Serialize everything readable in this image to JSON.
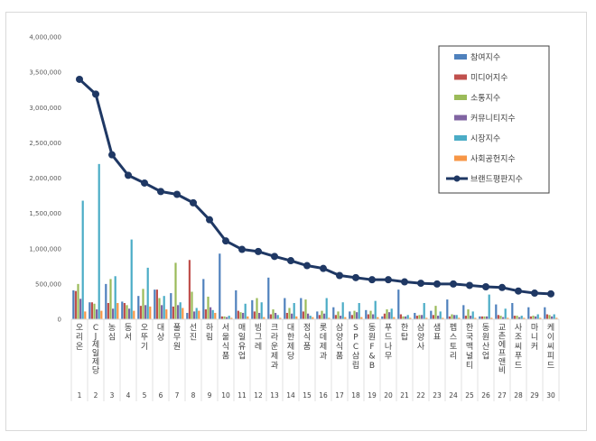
{
  "chart_data": {
    "type": "bar+line",
    "title": "",
    "xlabel": "",
    "ylabel": "",
    "ylim": [
      0,
      4000000
    ],
    "ytick_labels": [
      "0",
      "500,000",
      "1,000,000",
      "1,500,000",
      "2,000,000",
      "2,500,000",
      "3,000,000",
      "3,500,000",
      "4,000,000"
    ],
    "grid": false,
    "legend_position": "top-right",
    "categories": [
      "오리온",
      "CJ제일제당",
      "농심",
      "동서",
      "오뚜기",
      "대상",
      "풀무원",
      "선진",
      "하림",
      "서울식품",
      "매일유업",
      "빙그레",
      "크라운제과",
      "대한제당",
      "정식품",
      "롯데제과",
      "삼양식품",
      "SPC삼립",
      "동원F&B",
      "푸드나무",
      "한탑",
      "삼양사",
      "샘표",
      "펩스토리",
      "한국맥널티",
      "동원산업",
      "교촌에프앤비",
      "사조씨푸드",
      "마니커",
      "케이씨피드"
    ],
    "ranks": [
      "1",
      "2",
      "3",
      "4",
      "5",
      "6",
      "7",
      "8",
      "9",
      "10",
      "11",
      "12",
      "13",
      "14",
      "15",
      "16",
      "17",
      "18",
      "19",
      "20",
      "21",
      "22",
      "23",
      "24",
      "25",
      "26",
      "27",
      "28",
      "29",
      "30"
    ],
    "series": [
      {
        "name": "참여지수",
        "color": "#4f81bd",
        "kind": "bar",
        "values": [
          410000,
          240000,
          500000,
          250000,
          330000,
          420000,
          370000,
          90000,
          570000,
          930000,
          410000,
          270000,
          590000,
          300000,
          300000,
          110000,
          170000,
          110000,
          130000,
          40000,
          420000,
          90000,
          120000,
          280000,
          200000,
          40000,
          210000,
          230000,
          170000,
          170000
        ]
      },
      {
        "name": "미디어지수",
        "color": "#c0504d",
        "kind": "bar",
        "values": [
          400000,
          240000,
          230000,
          230000,
          190000,
          420000,
          180000,
          840000,
          140000,
          40000,
          120000,
          110000,
          70000,
          90000,
          110000,
          60000,
          60000,
          60000,
          70000,
          80000,
          70000,
          50000,
          60000,
          40000,
          50000,
          40000,
          60000,
          50000,
          40000,
          70000
        ]
      },
      {
        "name": "소통지수",
        "color": "#9bbb59",
        "kind": "bar",
        "values": [
          500000,
          220000,
          570000,
          200000,
          430000,
          300000,
          800000,
          390000,
          320000,
          40000,
          100000,
          300000,
          140000,
          160000,
          280000,
          120000,
          110000,
          120000,
          120000,
          140000,
          40000,
          60000,
          190000,
          70000,
          140000,
          40000,
          50000,
          50000,
          50000,
          60000
        ]
      },
      {
        "name": "커뮤니티지수",
        "color": "#8064a2",
        "kind": "bar",
        "values": [
          290000,
          140000,
          150000,
          150000,
          200000,
          200000,
          200000,
          110000,
          170000,
          30000,
          90000,
          90000,
          90000,
          80000,
          80000,
          80000,
          50000,
          100000,
          70000,
          100000,
          40000,
          60000,
          50000,
          60000,
          50000,
          40000,
          30000,
          30000,
          40000,
          40000
        ]
      },
      {
        "name": "시장지수",
        "color": "#4bacc6",
        "kind": "bar",
        "values": [
          1680000,
          2200000,
          610000,
          1130000,
          730000,
          330000,
          240000,
          160000,
          130000,
          50000,
          220000,
          240000,
          60000,
          230000,
          50000,
          300000,
          240000,
          230000,
          260000,
          150000,
          60000,
          230000,
          110000,
          60000,
          110000,
          350000,
          150000,
          50000,
          70000,
          70000
        ]
      },
      {
        "name": "사회공헌지수",
        "color": "#f79646",
        "kind": "bar",
        "values": [
          110000,
          120000,
          230000,
          120000,
          180000,
          140000,
          160000,
          120000,
          90000,
          20000,
          40000,
          30000,
          20000,
          40000,
          30000,
          20000,
          30000,
          30000,
          30000,
          30000,
          20000,
          20000,
          20000,
          20000,
          20000,
          20000,
          20000,
          20000,
          20000,
          20000
        ]
      },
      {
        "name": "브랜드평판지수",
        "color": "#1f3864",
        "kind": "line",
        "values": [
          3400000,
          3190000,
          2330000,
          2040000,
          1930000,
          1810000,
          1770000,
          1650000,
          1410000,
          1110000,
          990000,
          960000,
          890000,
          830000,
          760000,
          720000,
          620000,
          590000,
          560000,
          560000,
          530000,
          510000,
          500000,
          500000,
          480000,
          460000,
          450000,
          400000,
          370000,
          360000
        ]
      }
    ]
  }
}
